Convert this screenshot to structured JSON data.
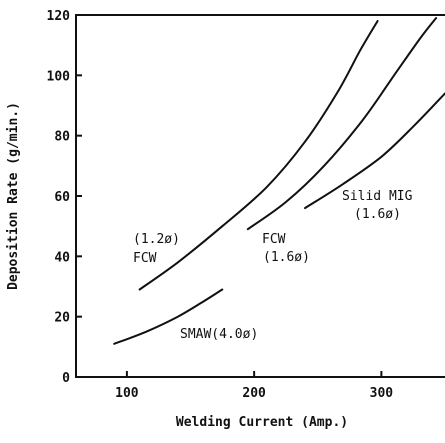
{
  "chart_data": {
    "type": "line",
    "xlabel": "Welding Current (Amp.)",
    "ylabel": "Deposition Rate (g/min.)",
    "xlim": [
      60,
      350
    ],
    "ylim": [
      0,
      120
    ],
    "x_ticks": [
      100,
      200,
      300
    ],
    "y_ticks": [
      0,
      20,
      40,
      60,
      80,
      100,
      120
    ],
    "series": [
      {
        "name": "SMAW(4.0ø)",
        "points": [
          [
            90,
            11
          ],
          [
            115,
            15
          ],
          [
            140,
            20
          ],
          [
            160,
            25
          ],
          [
            175,
            29
          ]
        ]
      },
      {
        "name": "(1.2ø) FCW",
        "points": [
          [
            110,
            29
          ],
          [
            140,
            38
          ],
          [
            175,
            50
          ],
          [
            210,
            63
          ],
          [
            240,
            78
          ],
          [
            265,
            94
          ],
          [
            283,
            108
          ],
          [
            297,
            118
          ]
        ]
      },
      {
        "name": "FCW (1.6ø)",
        "points": [
          [
            195,
            49
          ],
          [
            225,
            58
          ],
          [
            255,
            70
          ],
          [
            285,
            85
          ],
          [
            310,
            100
          ],
          [
            330,
            112
          ],
          [
            343,
            119
          ]
        ]
      },
      {
        "name": "Silid MIG (1.6ø)",
        "points": [
          [
            240,
            56
          ],
          [
            270,
            64
          ],
          [
            300,
            73
          ],
          [
            325,
            83
          ],
          [
            350,
            94
          ]
        ]
      }
    ],
    "annotations": {
      "fcw12_line1": "(1.2ø)",
      "fcw12_line2": "FCW",
      "fcw16_line1": "FCW",
      "fcw16_line2": "(1.6ø)",
      "mig_line1": "Silid MIG",
      "mig_line2": "(1.6ø)",
      "smaw": "SMAW(4.0ø)"
    },
    "grid": false
  }
}
